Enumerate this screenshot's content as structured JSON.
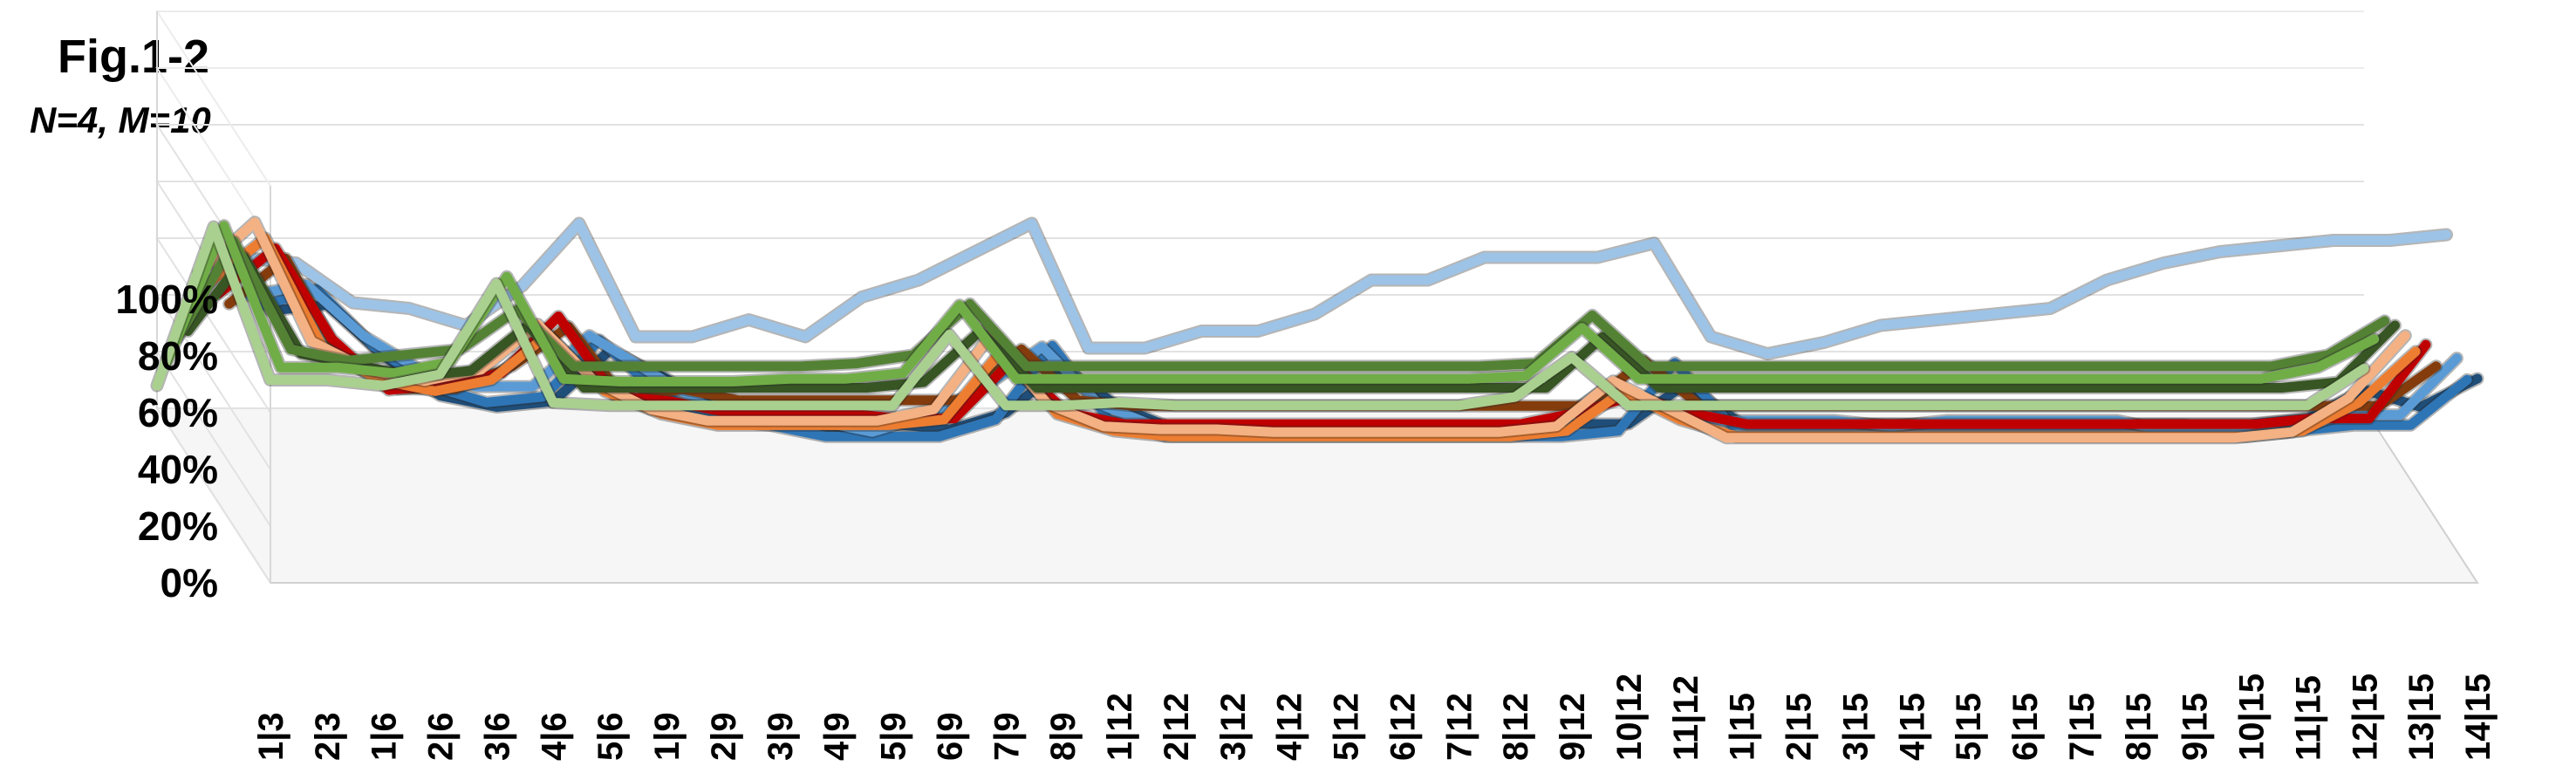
{
  "figure": {
    "title": "Fig.1-2",
    "subtitle": "N=4, M=10"
  },
  "chart_data": {
    "type": "line",
    "title": "Fig.1-2",
    "subtitle": "N=4, M=10",
    "projection": "3d-line",
    "grid": true,
    "legend": "none",
    "ylim": [
      0,
      100
    ],
    "yticks": [
      "0%",
      "20%",
      "40%",
      "60%",
      "80%",
      "100%"
    ],
    "categories": [
      "1|3",
      "2|3",
      "1|6",
      "2|6",
      "3|6",
      "4|6",
      "5|6",
      "1|9",
      "2|9",
      "3|9",
      "4|9",
      "5|9",
      "6|9",
      "7|9",
      "8|9",
      "1|12",
      "2|12",
      "3|12",
      "4|12",
      "5|12",
      "6|12",
      "7|12",
      "8|12",
      "9|12",
      "10|12",
      "11|12",
      "1|15",
      "2|15",
      "3|15",
      "4|15",
      "5|15",
      "6|15",
      "7|15",
      "8|15",
      "9|15",
      "10|15",
      "11|15",
      "12|15",
      "13|15",
      "14|15"
    ],
    "series": [
      {
        "color": "#a9d08e",
        "values": [
          8,
          64,
          10,
          10,
          8,
          12,
          44,
          2,
          1,
          1,
          1,
          1,
          1,
          1,
          26,
          1,
          1,
          2,
          1,
          1,
          1,
          1,
          1,
          1,
          4,
          18,
          1,
          1,
          1,
          1,
          1,
          1,
          1,
          1,
          1,
          1,
          1,
          1,
          1,
          14
        ]
      },
      {
        "color": "#70ad47",
        "values": [
          22,
          70,
          20,
          20,
          18,
          22,
          52,
          16,
          15,
          15,
          15,
          16,
          16,
          18,
          42,
          16,
          16,
          16,
          16,
          16,
          16,
          16,
          16,
          16,
          17,
          34,
          16,
          16,
          16,
          16,
          16,
          16,
          16,
          16,
          16,
          16,
          16,
          16,
          20,
          30
        ]
      },
      {
        "color": "#548235",
        "values": [
          36,
          70,
          32,
          28,
          30,
          32,
          46,
          26,
          26,
          26,
          26,
          26,
          27,
          30,
          48,
          26,
          26,
          26,
          26,
          26,
          26,
          26,
          26,
          26,
          27,
          44,
          26,
          26,
          26,
          26,
          26,
          26,
          26,
          26,
          26,
          26,
          26,
          26,
          30,
          42
        ]
      },
      {
        "color": "#375623",
        "values": [
          44,
          70,
          36,
          32,
          28,
          30,
          46,
          24,
          24,
          24,
          24,
          24,
          24,
          26,
          44,
          24,
          24,
          24,
          24,
          24,
          24,
          24,
          24,
          24,
          24,
          42,
          24,
          24,
          24,
          24,
          24,
          24,
          24,
          24,
          24,
          24,
          24,
          24,
          26,
          46
        ]
      },
      {
        "color": "#f4b183",
        "values": [
          70,
          88,
          46,
          36,
          32,
          36,
          52,
          32,
          22,
          18,
          18,
          18,
          18,
          22,
          48,
          24,
          16,
          15,
          15,
          14,
          14,
          14,
          14,
          14,
          16,
          32,
          22,
          12,
          12,
          12,
          12,
          12,
          12,
          12,
          12,
          12,
          12,
          14,
          26,
          48
        ]
      },
      {
        "color": "#ed7d31",
        "values": [
          72,
          88,
          50,
          38,
          34,
          38,
          54,
          34,
          26,
          22,
          22,
          22,
          22,
          24,
          48,
          26,
          20,
          18,
          18,
          18,
          18,
          18,
          18,
          18,
          20,
          34,
          24,
          18,
          18,
          18,
          18,
          18,
          18,
          18,
          18,
          18,
          18,
          20,
          30,
          48
        ]
      },
      {
        "color": "#c00000",
        "values": [
          74,
          90,
          58,
          40,
          42,
          46,
          66,
          38,
          36,
          32,
          32,
          32,
          30,
          30,
          50,
          32,
          28,
          28,
          28,
          28,
          28,
          28,
          28,
          28,
          32,
          38,
          32,
          28,
          28,
          28,
          28,
          28,
          28,
          28,
          28,
          28,
          28,
          30,
          30,
          56
        ]
      },
      {
        "color": "#843c0c",
        "values": [
          76,
          92,
          56,
          46,
          46,
          54,
          68,
          42,
          46,
          42,
          42,
          42,
          42,
          42,
          60,
          42,
          40,
          40,
          40,
          40,
          40,
          40,
          40,
          40,
          40,
          56,
          40,
          40,
          40,
          40,
          40,
          40,
          40,
          40,
          40,
          40,
          40,
          40,
          40,
          54
        ]
      },
      {
        "color": "#9dc3e6",
        "values": [
          98,
          96,
          82,
          80,
          74,
          88,
          110,
          70,
          70,
          76,
          70,
          84,
          90,
          100,
          110,
          66,
          66,
          72,
          72,
          78,
          90,
          90,
          98,
          98,
          98,
          103,
          70,
          64,
          68,
          74,
          76,
          78,
          80,
          90,
          96,
          100,
          102,
          104,
          104,
          106
        ]
      },
      {
        "color": "#5b9bd5",
        "values": [
          90,
          94,
          76,
          64,
          58,
          58,
          76,
          64,
          52,
          46,
          46,
          42,
          48,
          58,
          72,
          52,
          44,
          42,
          42,
          42,
          42,
          42,
          42,
          44,
          58,
          50,
          46,
          46,
          46,
          44,
          46,
          46,
          46,
          46,
          42,
          42,
          42,
          48,
          48,
          68
        ]
      },
      {
        "color": "#2e75b6",
        "values": [
          92,
          98,
          78,
          64,
          58,
          60,
          80,
          62,
          52,
          50,
          46,
          46,
          46,
          52,
          78,
          52,
          46,
          46,
          46,
          46,
          46,
          46,
          46,
          46,
          48,
          72,
          50,
          50,
          50,
          50,
          50,
          50,
          50,
          50,
          50,
          48,
          48,
          50,
          50,
          66
        ]
      },
      {
        "color": "#1f4e79",
        "values": [
          96,
          98,
          80,
          66,
          62,
          64,
          82,
          72,
          60,
          58,
          54,
          56,
          54,
          60,
          76,
          62,
          54,
          54,
          54,
          54,
          54,
          54,
          54,
          56,
          56,
          70,
          56,
          56,
          56,
          56,
          56,
          56,
          56,
          56,
          56,
          56,
          58,
          68,
          62,
          72
        ]
      }
    ]
  }
}
